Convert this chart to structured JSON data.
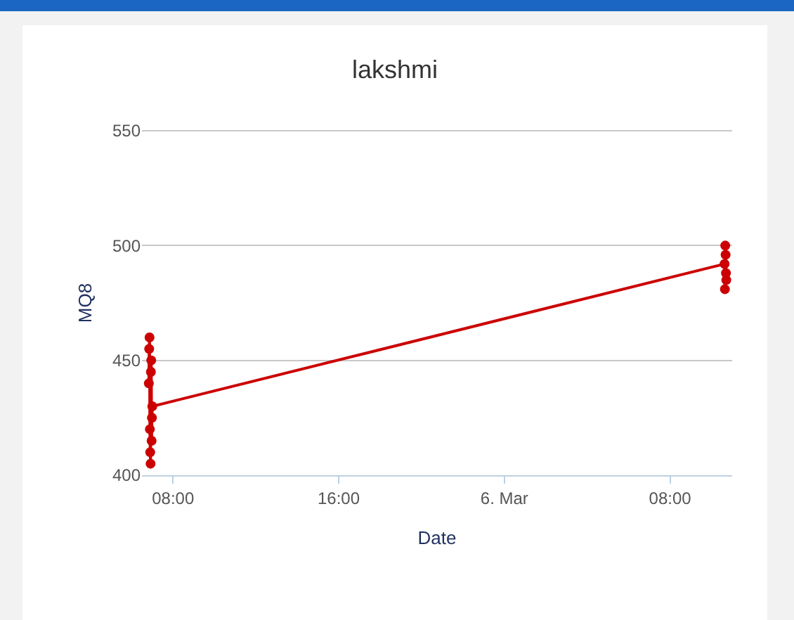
{
  "chart_data": {
    "type": "line",
    "title": "lakshmi",
    "xlabel": "Date",
    "ylabel": "MQ8",
    "x": [
      "--03-05T06:50",
      "--03-05T06:51",
      "--03-05T06:52",
      "--03-05T06:53",
      "--03-05T06:54",
      "--03-05T06:55",
      "--03-05T06:56",
      "--03-05T06:57",
      "--03-05T06:58",
      "--03-05T06:59",
      "--03-05T07:00",
      "--03-06T10:38",
      "--03-06T10:39",
      "--03-06T10:40",
      "--03-06T10:41",
      "--03-06T10:42",
      "--03-06T10:43"
    ],
    "series": [
      {
        "color": "#cc0000",
        "values": [
          440,
          455,
          460,
          420,
          410,
          405,
          445,
          450,
          415,
          425,
          430,
          492,
          481,
          500,
          496,
          488,
          485
        ]
      }
    ],
    "xlim": [
      "--03-05T06:30",
      "--03-06T11:00"
    ],
    "xticks": [
      {
        "value": "--03-05T08:00",
        "label": "08:00"
      },
      {
        "value": "--03-05T16:00",
        "label": "16:00"
      },
      {
        "value": "--03-06T00:00",
        "label": "6. Mar"
      },
      {
        "value": "--03-06T08:00",
        "label": "08:00"
      }
    ],
    "ylim": [
      400,
      550
    ],
    "yticks": [
      400,
      450,
      500,
      550
    ],
    "grid": "y",
    "marker": "circle",
    "line_style": "solid"
  }
}
